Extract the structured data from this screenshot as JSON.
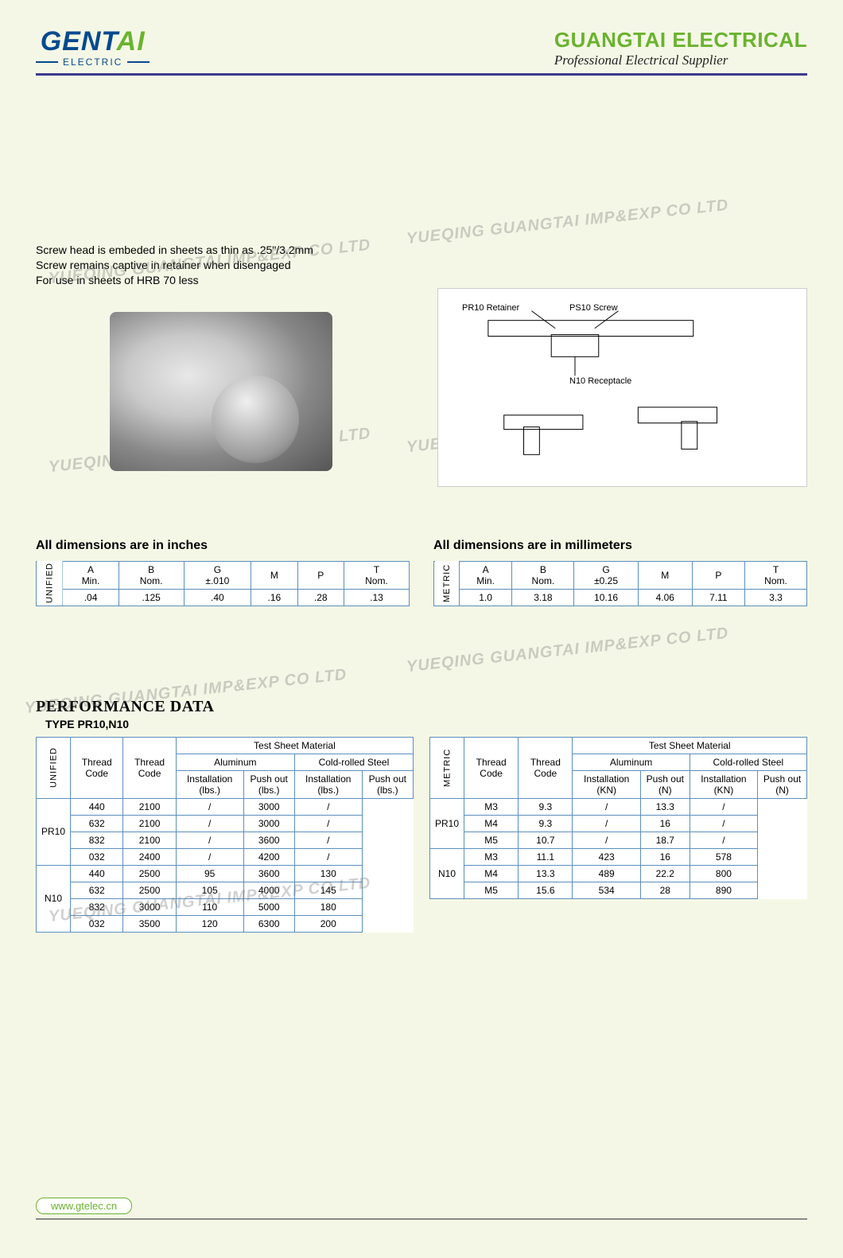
{
  "header": {
    "logo_main_a": "GENT",
    "logo_main_b": "AI",
    "logo_sub": "ELECTRIC",
    "company": "GUANGTAI ELECTRICAL",
    "tagline": "Professional Electrical Supplier"
  },
  "description": {
    "line1": "Screw head is embeded in sheets as thin as .25\"/3.2mm",
    "line2": "Screw remains captive in retainer when disengaged",
    "line3": "For use in sheets of HRB 70 less"
  },
  "diagram_labels": {
    "retainer": "PR10 Retainer",
    "screw": "PS10 Screw",
    "receptacle": "N10 Receptacle"
  },
  "watermark": "YUEQING GUANGTAI IMP&EXP CO LTD",
  "dim_inches_title": "All dimensions are in inches",
  "dim_mm_title": "All dimensions are in millimeters",
  "dim_labels": {
    "unified": "UNIFIED",
    "metric": "METRIC",
    "a": "A",
    "a_sub": "Min.",
    "b": "B",
    "b_sub": "Nom.",
    "g": "G",
    "g_sub_in": "±.010",
    "g_sub_mm": "±0.25",
    "m": "M",
    "p": "P",
    "t": "T",
    "t_sub": "Nom."
  },
  "dim_inches": {
    "a": ".04",
    "b": ".125",
    "g": ".40",
    "m": ".16",
    "p": ".28",
    "t": ".13"
  },
  "dim_mm": {
    "a": "1.0",
    "b": "3.18",
    "g": "10.16",
    "m": "4.06",
    "p": "7.11",
    "t": "3.3"
  },
  "perf": {
    "title": "PERFORMANCE DATA",
    "subtitle": "TYPE PR10,N10",
    "headers": {
      "thread_code": "Thread Code",
      "test_mat": "Test Sheet Material",
      "alum": "Aluminum",
      "crs": "Cold-rolled Steel",
      "install_lbs": "Installation (lbs.)",
      "push_lbs": "Push out (lbs.)",
      "install_kn": "Installation (KN)",
      "push_n": "Push out (N)"
    },
    "unified_rows": [
      {
        "tc1": "PR10",
        "span1": 4,
        "tc2": "440",
        "al_i": "2100",
        "al_p": "/",
        "cr_i": "3000",
        "cr_p": "/"
      },
      {
        "tc1": "",
        "tc2": "632",
        "al_i": "2100",
        "al_p": "/",
        "cr_i": "3000",
        "cr_p": "/"
      },
      {
        "tc1": "",
        "tc2": "832",
        "al_i": "2100",
        "al_p": "/",
        "cr_i": "3600",
        "cr_p": "/"
      },
      {
        "tc1": "",
        "tc2": "032",
        "al_i": "2400",
        "al_p": "/",
        "cr_i": "4200",
        "cr_p": "/"
      },
      {
        "tc1": "N10",
        "span1": 4,
        "tc2": "440",
        "al_i": "2500",
        "al_p": "95",
        "cr_i": "3600",
        "cr_p": "130"
      },
      {
        "tc1": "",
        "tc2": "632",
        "al_i": "2500",
        "al_p": "105",
        "cr_i": "4000",
        "cr_p": "145"
      },
      {
        "tc1": "",
        "tc2": "832",
        "al_i": "3000",
        "al_p": "110",
        "cr_i": "5000",
        "cr_p": "180"
      },
      {
        "tc1": "",
        "tc2": "032",
        "al_i": "3500",
        "al_p": "120",
        "cr_i": "6300",
        "cr_p": "200"
      }
    ],
    "metric_rows": [
      {
        "tc1": "PR10",
        "span1": 3,
        "tc2": "M3",
        "al_i": "9.3",
        "al_p": "/",
        "cr_i": "13.3",
        "cr_p": "/"
      },
      {
        "tc1": "",
        "tc2": "M4",
        "al_i": "9.3",
        "al_p": "/",
        "cr_i": "16",
        "cr_p": "/"
      },
      {
        "tc1": "",
        "tc2": "M5",
        "al_i": "10.7",
        "al_p": "/",
        "cr_i": "18.7",
        "cr_p": "/"
      },
      {
        "tc1": "N10",
        "span1": 3,
        "tc2": "M3",
        "al_i": "11.1",
        "al_p": "423",
        "cr_i": "16",
        "cr_p": "578"
      },
      {
        "tc1": "",
        "tc2": "M4",
        "al_i": "13.3",
        "al_p": "489",
        "cr_i": "22.2",
        "cr_p": "800"
      },
      {
        "tc1": "",
        "tc2": "M5",
        "al_i": "15.6",
        "al_p": "534",
        "cr_i": "28",
        "cr_p": "890"
      }
    ]
  },
  "footer_url": "www.gtelec.cn",
  "colors": {
    "page_bg": "#f5f7e6",
    "brand_blue": "#044a8f",
    "brand_green": "#6ab32e",
    "rule_purple": "#3c3b8e",
    "table_border": "#5b8fbf"
  }
}
